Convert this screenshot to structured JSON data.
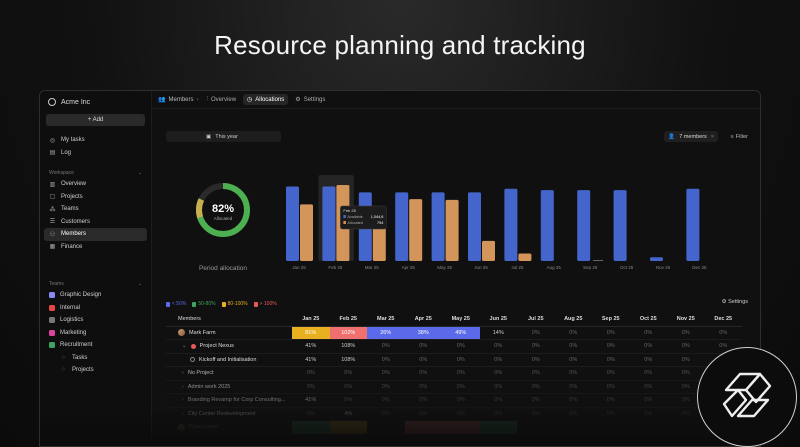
{
  "hero_title": "Resource planning and tracking",
  "sidebar": {
    "org_name": "Acme Inc",
    "add_label": "+ Add",
    "top_items": [
      {
        "label": "My tasks",
        "icon": "check-circle-icon"
      },
      {
        "label": "Log",
        "icon": "log-icon"
      }
    ],
    "workspace_label": "Workspace",
    "workspace_items": [
      {
        "label": "Overview",
        "icon": "bar-chart-icon"
      },
      {
        "label": "Projects",
        "icon": "folder-icon"
      },
      {
        "label": "Teams",
        "icon": "team-icon"
      },
      {
        "label": "Customers",
        "icon": "customers-icon"
      },
      {
        "label": "Members",
        "icon": "members-icon",
        "active": true
      },
      {
        "label": "Finance",
        "icon": "finance-icon"
      }
    ],
    "teams_label": "Teams",
    "team_items": [
      {
        "label": "Graphic Design",
        "color": "#8a8af0"
      },
      {
        "label": "Internal",
        "color": "#e84545"
      },
      {
        "label": "Logistics",
        "color": "#777777"
      },
      {
        "label": "Marketing",
        "color": "#e040a0"
      },
      {
        "label": "Recruitment",
        "color": "#3aa560"
      }
    ],
    "sub_items": [
      {
        "label": "Tasks"
      },
      {
        "label": "Projects"
      }
    ]
  },
  "topbar": {
    "breadcrumb": "Members",
    "tabs": [
      {
        "label": "Overview"
      },
      {
        "label": "Allocations",
        "active": true
      },
      {
        "label": "Settings"
      }
    ]
  },
  "filters": {
    "period": "This year",
    "members": "7 members",
    "filter_label": "Filter"
  },
  "donut": {
    "percent": "82%",
    "caption": "Allocated",
    "title": "Period allocation",
    "value": 0.82
  },
  "chart_data": {
    "type": "bar",
    "categories": [
      "Jan 25",
      "Feb 25",
      "Mar 25",
      "Apr 25",
      "May 25",
      "Jun 25",
      "Jul 25",
      "Aug 25",
      "Sep 25",
      "Oct 25",
      "Nov 25",
      "Dec 25"
    ],
    "series": [
      {
        "name": "Available",
        "color": "#4466cc",
        "values": [
          100,
          100,
          92,
          92,
          92,
          92,
          97,
          95,
          95,
          95,
          5,
          97
        ]
      },
      {
        "name": "Allocated",
        "color": "#d4955a",
        "values": [
          76,
          102,
          60,
          83,
          82,
          27,
          10,
          0,
          0,
          0,
          0,
          0
        ]
      }
    ],
    "ylim": [
      0,
      110
    ],
    "tooltip": {
      "title": "Feb 25",
      "rows": [
        {
          "label": "Available",
          "value": "1,044,6"
        },
        {
          "label": "Allocated",
          "value": "794"
        }
      ]
    }
  },
  "legend": {
    "items": [
      {
        "label": "< 50%",
        "color": "#5a6ae8"
      },
      {
        "label": "50-80%",
        "color": "#3aa560"
      },
      {
        "label": "80-100%",
        "color": "#e8b020"
      },
      {
        "label": "> 100%",
        "color": "#e85a5a"
      }
    ],
    "settings_label": "Settings"
  },
  "table": {
    "name_header": "Members",
    "months": [
      "Jan 25",
      "Feb 25",
      "Mar 25",
      "Apr 25",
      "May 25",
      "Jun 25",
      "Jul 25",
      "Aug 25",
      "Sep 25",
      "Oct 25",
      "Nov 25",
      "Dec 25"
    ],
    "rows": [
      {
        "name": "Mark Farm",
        "kind": "member",
        "values": [
          "81%",
          "102%",
          "26%",
          "38%",
          "49%",
          "14%",
          "0%",
          "0%",
          "0%",
          "0%",
          "0%",
          "0%"
        ],
        "fills": [
          "#e8b020",
          "#f07070",
          "#5a6ae8",
          "#5a6ae8",
          "#5a6ae8",
          "",
          "",
          "",
          "",
          "",
          "",
          ""
        ]
      },
      {
        "name": "Project Nexus",
        "kind": "project",
        "values": [
          "41%",
          "108%",
          "0%",
          "0%",
          "0%",
          "0%",
          "0%",
          "0%",
          "0%",
          "0%",
          "0%",
          "0%"
        ]
      },
      {
        "name": "Kickoff and Initialisation",
        "kind": "task",
        "values": [
          "41%",
          "108%",
          "0%",
          "0%",
          "0%",
          "0%",
          "0%",
          "0%",
          "0%",
          "0%",
          "0%",
          "0%"
        ]
      },
      {
        "name": "No Project",
        "kind": "other",
        "values": [
          "0%",
          "0%",
          "0%",
          "0%",
          "0%",
          "0%",
          "0%",
          "0%",
          "0%",
          "0%",
          "0%",
          "0%"
        ]
      },
      {
        "name": "Admin work 2025",
        "kind": "other",
        "values": [
          "0%",
          "0%",
          "0%",
          "0%",
          "0%",
          "0%",
          "0%",
          "0%",
          "0%",
          "0%",
          "0%",
          "0%"
        ]
      },
      {
        "name": "Branding Revamp for Corp Consulting...",
        "kind": "other",
        "values": [
          "41%",
          "0%",
          "0%",
          "0%",
          "0%",
          "0%",
          "0%",
          "0%",
          "0%",
          "0%",
          "0%",
          "0%"
        ]
      },
      {
        "name": "City Center Redevelopment",
        "kind": "other",
        "values": [
          "0%",
          "4%",
          "0%",
          "0%",
          "0%",
          "0%",
          "0%",
          "0%",
          "0%",
          "0%",
          "0%",
          "0%"
        ]
      },
      {
        "name": "Ryan Lopez",
        "kind": "member",
        "values": [
          "",
          "",
          "",
          "",
          "",
          "",
          "",
          "",
          "",
          "",
          "",
          ""
        ],
        "fills": [
          "#3aa560",
          "#e8b020",
          "",
          "#f07070",
          "#f07070",
          "#3aa560",
          "",
          "",
          "",
          "",
          "",
          ""
        ]
      }
    ]
  }
}
